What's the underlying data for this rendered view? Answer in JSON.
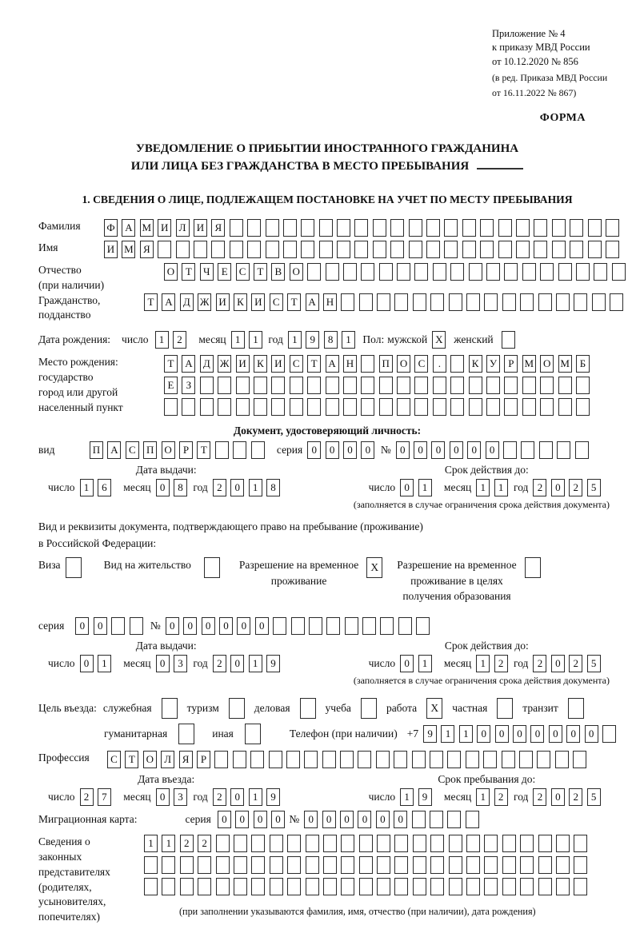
{
  "labels": {
    "day": "число",
    "month": "месяц",
    "year": "год",
    "series": "серия",
    "number": "№"
  },
  "header": {
    "appendix_line1": "Приложение № 4",
    "appendix_line2": "к приказу МВД России",
    "appendix_line3": "от 10.12.2020 № 856",
    "edition_line1": "(в ред. Приказа МВД России",
    "edition_line2": "от 16.11.2022 № 867)",
    "form_label": "ФОРМА"
  },
  "title": {
    "line1": "УВЕДОМЛЕНИЕ О ПРИБЫТИИ ИНОСТРАННОГО ГРАЖДАНИНА",
    "line2": "ИЛИ ЛИЦА БЕЗ ГРАЖДАНСТВА В МЕСТО ПРЕБЫВАНИЯ"
  },
  "section1_heading": "1. СВЕДЕНИЯ О ЛИЦЕ, ПОДЛЕЖАЩЕМ ПОСТАНОВКЕ НА УЧЕТ ПО МЕСТУ ПРЕБЫВАНИЯ",
  "surname": {
    "label": "Фамилия",
    "cells": [
      "Ф",
      "А",
      "М",
      "И",
      "Л",
      "И",
      "Я",
      "",
      "",
      "",
      "",
      "",
      "",
      "",
      "",
      "",
      "",
      "",
      "",
      "",
      "",
      "",
      "",
      "",
      "",
      "",
      "",
      "",
      ""
    ]
  },
  "name": {
    "label": "Имя",
    "cells": [
      "И",
      "М",
      "Я",
      "",
      "",
      "",
      "",
      "",
      "",
      "",
      "",
      "",
      "",
      "",
      "",
      "",
      "",
      "",
      "",
      "",
      "",
      "",
      "",
      "",
      "",
      "",
      "",
      "",
      ""
    ]
  },
  "patronymic": {
    "label1": "Отчество",
    "label2": "(при наличии)",
    "cells": [
      "О",
      "Т",
      "Ч",
      "Е",
      "С",
      "Т",
      "В",
      "О",
      "",
      "",
      "",
      "",
      "",
      "",
      "",
      "",
      "",
      "",
      "",
      "",
      "",
      "",
      "",
      "",
      "",
      ""
    ]
  },
  "citizenship": {
    "label1": "Гражданство,",
    "label2": "подданство",
    "cells": [
      "Т",
      "А",
      "Д",
      "Ж",
      "И",
      "К",
      "И",
      "С",
      "Т",
      "А",
      "Н",
      "",
      "",
      "",
      "",
      "",
      "",
      "",
      "",
      "",
      "",
      "",
      "",
      "",
      "",
      "",
      ""
    ]
  },
  "birth_date": {
    "label": "Дата рождения:",
    "day": [
      "1",
      "2"
    ],
    "month": [
      "1",
      "1"
    ],
    "year": [
      "1",
      "9",
      "8",
      "1"
    ],
    "sex_label": "Пол:",
    "male_label": "мужской",
    "male": "X",
    "female_label": "женский",
    "female": ""
  },
  "birth_place": {
    "label1": "Место рождения:",
    "label2": "государство",
    "label3": "город или другой",
    "label4": "населенный пункт",
    "row1": [
      "Т",
      "А",
      "Д",
      "Ж",
      "И",
      "К",
      "И",
      "С",
      "Т",
      "А",
      "Н",
      "",
      "П",
      "О",
      "С",
      ".",
      "",
      "К",
      "У",
      "Р",
      "М",
      "О",
      "М",
      "Б"
    ],
    "row2": [
      "Е",
      "З",
      "",
      "",
      "",
      "",
      "",
      "",
      "",
      "",
      "",
      "",
      "",
      "",
      "",
      "",
      "",
      "",
      "",
      "",
      "",
      "",
      "",
      ""
    ],
    "row3": [
      "",
      "",
      "",
      "",
      "",
      "",
      "",
      "",
      "",
      "",
      "",
      "",
      "",
      "",
      "",
      "",
      "",
      "",
      "",
      "",
      "",
      "",
      "",
      ""
    ]
  },
  "identity_doc": {
    "header": "Документ, удостоверяющий личность:",
    "type_label": "вид",
    "type_cells": [
      "П",
      "А",
      "С",
      "П",
      "О",
      "Р",
      "Т",
      "",
      "",
      ""
    ],
    "series": [
      "0",
      "0",
      "0",
      "0"
    ],
    "number": [
      "0",
      "0",
      "0",
      "0",
      "0",
      "0",
      "",
      "",
      "",
      "",
      ""
    ]
  },
  "issue1": {
    "title": "Дата выдачи:",
    "day": [
      "1",
      "6"
    ],
    "month": [
      "0",
      "8"
    ],
    "year": [
      "2",
      "0",
      "1",
      "8"
    ]
  },
  "valid1": {
    "title": "Срок действия до:",
    "day": [
      "0",
      "1"
    ],
    "month": [
      "1",
      "1"
    ],
    "year": [
      "2",
      "0",
      "2",
      "5"
    ],
    "note": "(заполняется в случае ограничения срока действия документа)"
  },
  "residence_doc": {
    "line1": "Вид и реквизиты документа, подтверждающего право на пребывание (проживание)",
    "line2": "в Российской Федерации:",
    "opt1_label": "Виза",
    "opt1": "",
    "opt2_label": "Вид на жительство",
    "opt2": "",
    "opt3_line1": "Разрешение на временное",
    "opt3_line2": "проживание",
    "opt3": "X",
    "opt4_line1": "Разрешение на временное",
    "opt4_line2": "проживание в целях",
    "opt4_line3": "получения образования",
    "opt4": "",
    "series": [
      "0",
      "0",
      "",
      ""
    ],
    "number": [
      "0",
      "0",
      "0",
      "0",
      "0",
      "0",
      "",
      "",
      "",
      "",
      "",
      "",
      "",
      "",
      ""
    ]
  },
  "issue2": {
    "title": "Дата выдачи:",
    "day": [
      "0",
      "1"
    ],
    "month": [
      "0",
      "3"
    ],
    "year": [
      "2",
      "0",
      "1",
      "9"
    ]
  },
  "valid2": {
    "title": "Срок действия до:",
    "day": [
      "0",
      "1"
    ],
    "month": [
      "1",
      "2"
    ],
    "year": [
      "2",
      "0",
      "2",
      "5"
    ],
    "note": "(заполняется в случае ограничения срока действия документа)"
  },
  "purpose": {
    "label": "Цель въезда:",
    "opt1_label": "служебная",
    "opt1": "",
    "opt2_label": "туризм",
    "opt2": "",
    "opt3_label": "деловая",
    "opt3": "",
    "opt4_label": "учеба",
    "opt4": "",
    "opt5_label": "работа",
    "opt5": "X",
    "opt6_label": "частная",
    "opt6": "",
    "opt7_label": "транзит",
    "opt7": "",
    "opt8_label": "гуманитарная",
    "opt8": "",
    "opt9_label": "иная",
    "opt9": "",
    "phone_label": "Телефон (при наличии)",
    "phone_prefix": "+7",
    "phone": [
      "9",
      "1",
      "1",
      "0",
      "0",
      "0",
      "0",
      "0",
      "0",
      "0",
      ""
    ]
  },
  "profession": {
    "label": "Профессия",
    "cells": [
      "С",
      "Т",
      "О",
      "Л",
      "Я",
      "Р",
      "",
      "",
      "",
      "",
      "",
      "",
      "",
      "",
      "",
      "",
      "",
      "",
      "",
      "",
      "",
      "",
      "",
      "",
      "",
      "",
      ""
    ]
  },
  "entry_date": {
    "title": "Дата въезда:",
    "day": [
      "2",
      "7"
    ],
    "month": [
      "0",
      "3"
    ],
    "year": [
      "2",
      "0",
      "1",
      "9"
    ]
  },
  "stay_until": {
    "title": "Срок пребывания до:",
    "day": [
      "1",
      "9"
    ],
    "month": [
      "1",
      "2"
    ],
    "year": [
      "2",
      "0",
      "2",
      "5"
    ]
  },
  "migration_card": {
    "label": "Миграционная карта:",
    "series": [
      "0",
      "0",
      "0",
      "0"
    ],
    "number": [
      "0",
      "0",
      "0",
      "0",
      "0",
      "0",
      "",
      "",
      "",
      ""
    ]
  },
  "representatives": {
    "label1": "Сведения о",
    "label2": "законных",
    "label3": "представителях",
    "label4": "(родителях,",
    "label5": "усыновителях,",
    "label6": "попечителях)",
    "row1": [
      "1",
      "1",
      "2",
      "2",
      "",
      "",
      "",
      "",
      "",
      "",
      "",
      "",
      "",
      "",
      "",
      "",
      "",
      "",
      "",
      "",
      "",
      "",
      "",
      "",
      ""
    ],
    "row2": [
      "",
      "",
      "",
      "",
      "",
      "",
      "",
      "",
      "",
      "",
      "",
      "",
      "",
      "",
      "",
      "",
      "",
      "",
      "",
      "",
      "",
      "",
      "",
      "",
      ""
    ],
    "row3": [
      "",
      "",
      "",
      "",
      "",
      "",
      "",
      "",
      "",
      "",
      "",
      "",
      "",
      "",
      "",
      "",
      "",
      "",
      "",
      "",
      "",
      "",
      "",
      "",
      ""
    ],
    "note": "(при заполнении указываются фамилия, имя, отчество (при наличии), дата рождения)"
  }
}
